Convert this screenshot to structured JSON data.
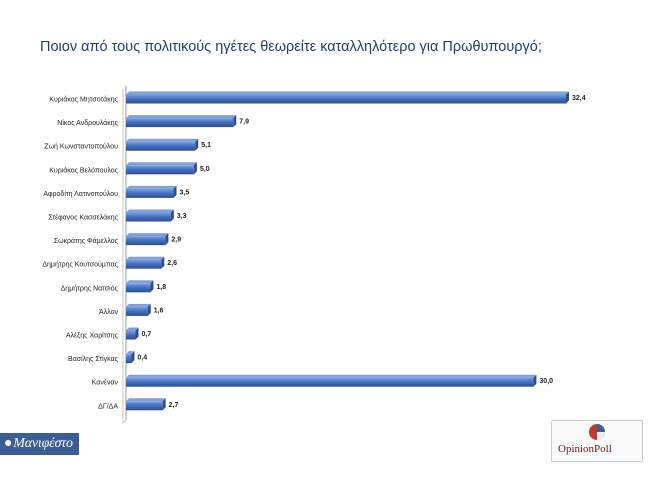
{
  "title": "Ποιον από τους πολιτικούς ηγέτες θεωρείτε καταλληλότερο για Πρωθυπουργό;",
  "footer": {
    "left_logo": "Μανιφέστο",
    "right_logo": "OpinionPoll"
  },
  "colors": {
    "bar": "#4472c4",
    "bar_dark": "#2c4e8c",
    "bar_light": "#7fa0da",
    "title": "#1f3f73",
    "logo_blue": "#3b5f95",
    "logo_red": "#c0392b"
  },
  "chart_data": {
    "type": "bar",
    "orientation": "horizontal",
    "categories": [
      "Κυριάκος Μητσοτάκης",
      "Νίκος Ανδρουλάκης",
      "Ζωή Κωνσταντοπούλου",
      "Κυριάκος Βελόπουλος",
      "Αφροδίτη Λατινοπούλου",
      "Στέφανος Κασσελάκης",
      "Σωκράτης Φάμελλος",
      "Δημήτρης Κουτσούμπας",
      "Δημήτρης Νατσιός",
      "Άλλον",
      "Αλέξης Χαρίτσης",
      "Βασίλης Στίγκας",
      "Κανέναν",
      "ΔΓ/ΔΑ"
    ],
    "values": [
      32.4,
      7.9,
      5.1,
      5.0,
      3.5,
      3.3,
      2.9,
      2.6,
      1.8,
      1.6,
      0.7,
      0.4,
      30.0,
      2.7
    ],
    "value_labels": [
      "32,4",
      "7,9",
      "5,1",
      "5,0",
      "3,5",
      "3,3",
      "2,9",
      "2,6",
      "1,8",
      "1,6",
      "0,7",
      "0,4",
      "30,0",
      "2,7"
    ],
    "xlim": [
      0,
      33
    ],
    "grid": false,
    "legend": "none"
  }
}
